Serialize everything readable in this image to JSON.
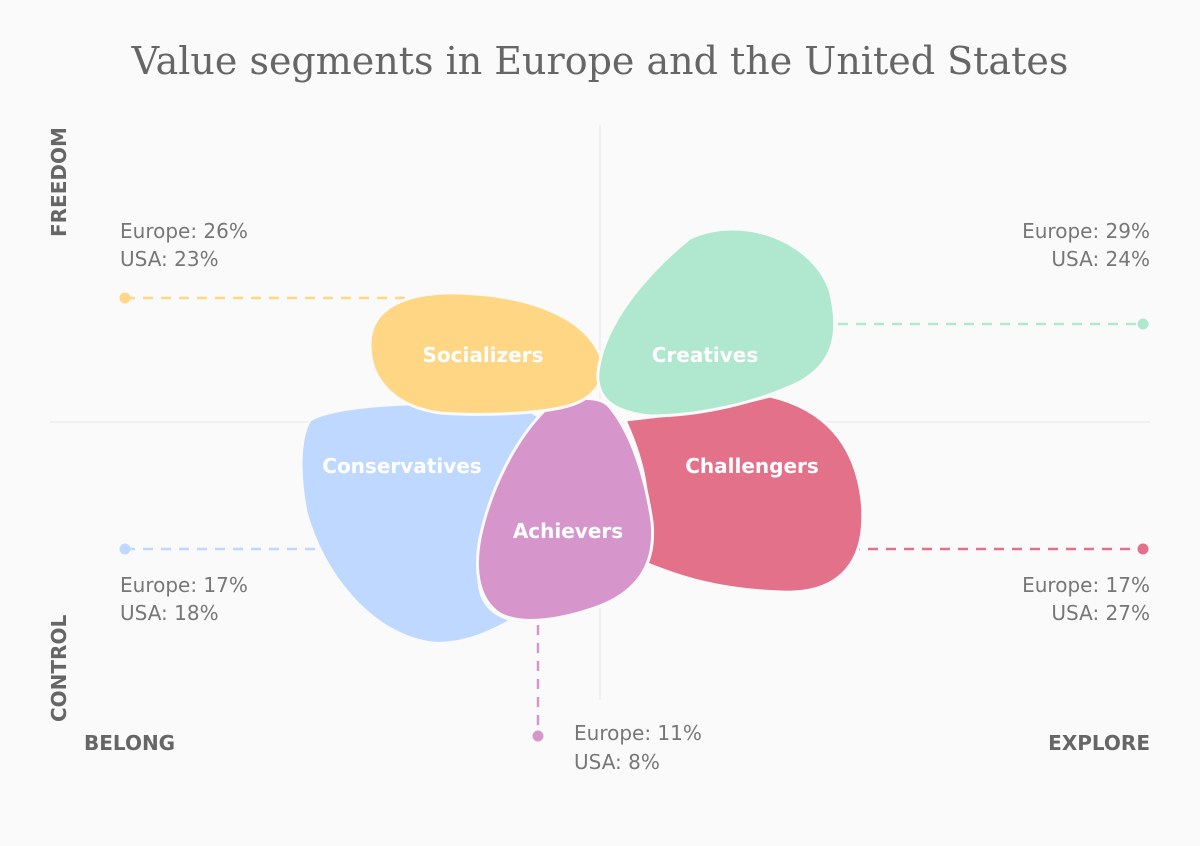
{
  "title": "Value segments in Europe and the United States",
  "axes": {
    "top": "FREEDOM",
    "bottom": "CONTROL",
    "left": "BELONG",
    "right": "EXPLORE"
  },
  "segments": [
    {
      "name": "Socializers",
      "europe": "Europe: 26%",
      "usa": "USA: 23%",
      "color": "#fed684"
    },
    {
      "name": "Creatives",
      "europe": "Europe: 29%",
      "usa": "USA: 24%",
      "color": "#afe7cf"
    },
    {
      "name": "Conservatives",
      "europe": "Europe: 17%",
      "usa": "USA: 18%",
      "color": "#bfd8ff"
    },
    {
      "name": "Challengers",
      "europe": "Europe: 17%",
      "usa": "USA: 27%",
      "color": "#e27189"
    },
    {
      "name": "Achievers",
      "europe": "Europe: 11%",
      "usa": "USA: 8%",
      "color": "#d696cb"
    }
  ]
}
